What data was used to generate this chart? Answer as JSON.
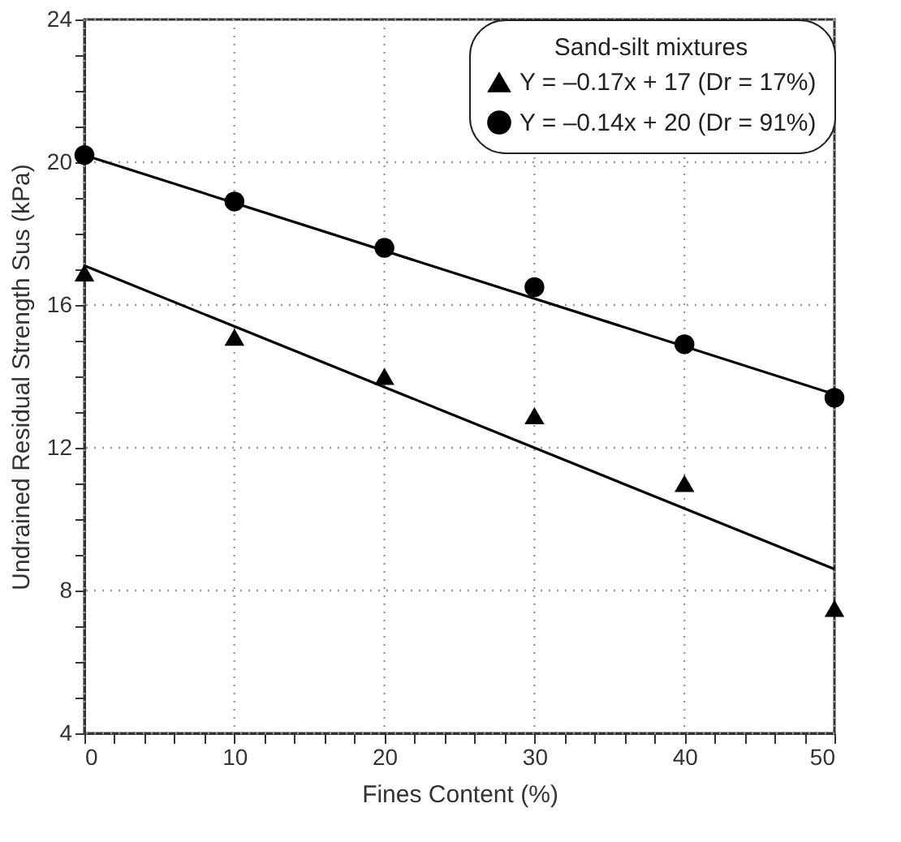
{
  "chart_data": {
    "type": "scatter",
    "xlabel": "Fines Content (%)",
    "ylabel": "Undrained Residual Strength Sus (kPa)",
    "legend_title": "Sand-silt mixtures",
    "legend": "top right",
    "grid": true,
    "xlim": [
      0,
      50
    ],
    "ylim": [
      4,
      24
    ],
    "xticks": [
      0,
      {
        "value": 2,
        "label": null
      },
      {
        "value": 4,
        "label": null
      },
      {
        "value": 6,
        "label": null
      },
      {
        "value": 8,
        "label": null
      },
      10,
      {
        "value": 12,
        "label": null
      },
      {
        "value": 14,
        "label": null
      },
      {
        "value": 16,
        "label": null
      },
      {
        "value": 18,
        "label": null
      },
      20,
      {
        "value": 22,
        "label": null
      },
      {
        "value": 24,
        "label": null
      },
      {
        "value": 26,
        "label": null
      },
      {
        "value": 28,
        "label": null
      },
      30,
      {
        "value": 32,
        "label": null
      },
      {
        "value": 34,
        "label": null
      },
      {
        "value": 36,
        "label": null
      },
      {
        "value": 38,
        "label": null
      },
      40,
      {
        "value": 42,
        "label": null
      },
      {
        "value": 44,
        "label": null
      },
      {
        "value": 46,
        "label": null
      },
      {
        "value": 48,
        "label": null
      },
      50
    ],
    "yticks": [
      4,
      {
        "value": 5,
        "label": null
      },
      {
        "value": 6,
        "label": null
      },
      {
        "value": 7,
        "label": null
      },
      8,
      {
        "value": 9,
        "label": null
      },
      {
        "value": 10,
        "label": null
      },
      {
        "value": 11,
        "label": null
      },
      12,
      {
        "value": 13,
        "label": null
      },
      {
        "value": 14,
        "label": null
      },
      {
        "value": 15,
        "label": null
      },
      16,
      {
        "value": 17,
        "label": null
      },
      {
        "value": 18,
        "label": null
      },
      {
        "value": 19,
        "label": null
      },
      20,
      {
        "value": 21,
        "label": null
      },
      {
        "value": 22,
        "label": null
      },
      {
        "value": 23,
        "label": null
      },
      24
    ],
    "series": [
      {
        "name": "Y = –0.17x + 17 (Dr = 17%)",
        "color": "#000000",
        "marker": "triangle",
        "x": [
          0,
          10,
          20,
          30,
          40,
          50
        ],
        "values": [
          16.9,
          15.1,
          14.0,
          12.9,
          11.0,
          7.5
        ]
      },
      {
        "name": "Y = –0.14x + 20 (Dr = 91%)",
        "color": "#000000",
        "marker": "circle",
        "x": [
          0,
          10,
          20,
          30,
          40,
          50
        ],
        "values": [
          20.2,
          18.9,
          17.6,
          16.5,
          14.9,
          13.4
        ]
      },
      {
        "type": "line",
        "color": "#000000",
        "line_style": "solid",
        "marker": "none",
        "x": [
          0,
          50
        ],
        "values": [
          17.1,
          8.6
        ]
      },
      {
        "type": "line",
        "color": "#000000",
        "line_style": "solid",
        "marker": "none",
        "x": [
          0,
          50
        ],
        "values": [
          20.2,
          13.5
        ]
      }
    ]
  }
}
